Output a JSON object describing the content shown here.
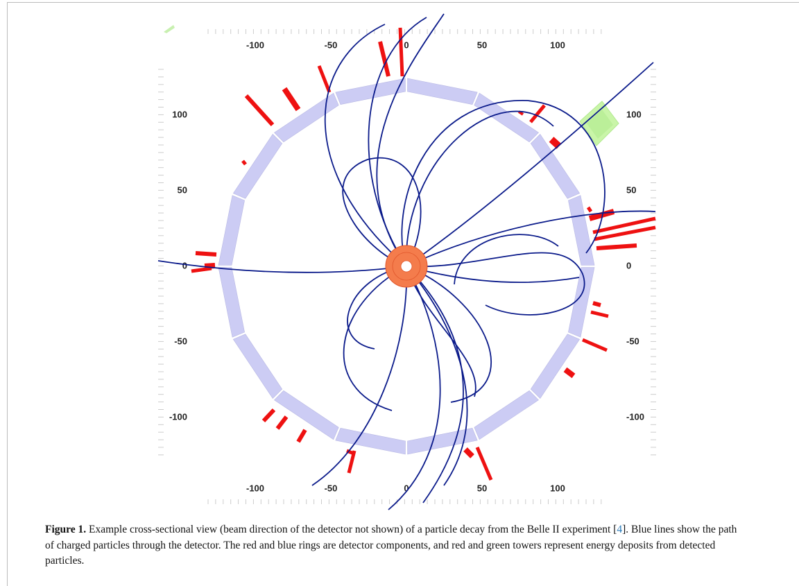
{
  "figure": {
    "xticks": [
      -100,
      -50,
      0,
      50,
      100
    ],
    "yticks": [
      -100,
      -50,
      0,
      50,
      100
    ],
    "caption": {
      "label": "Figure 1.",
      "text_before": "Example cross-sectional view (beam direction of the detector not shown) of a particle decay from the Belle II experiment [",
      "ref": "4",
      "text_after": "]. Blue lines show the path of charged particles through the detector. The red and blue rings are detector components, and red and green towers represent energy deposits from detected particles."
    }
  }
}
